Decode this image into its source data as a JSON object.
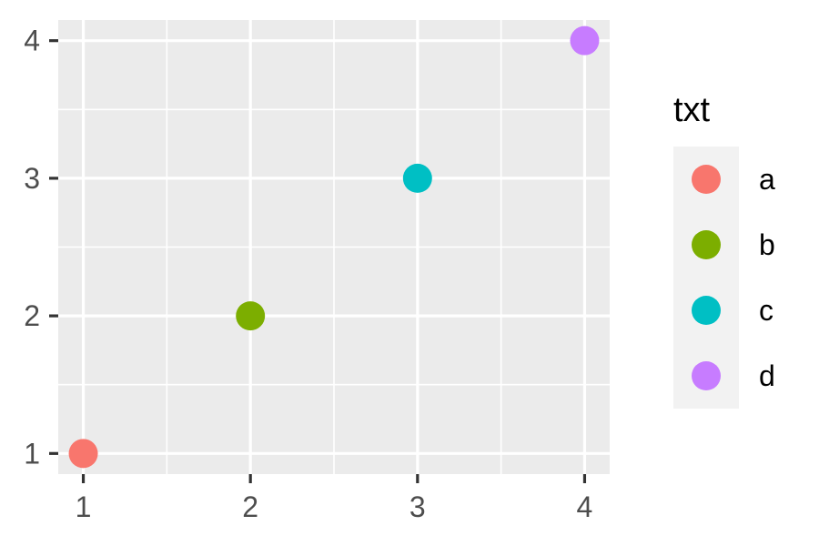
{
  "chart_data": {
    "type": "scatter",
    "x": [
      1,
      2,
      3,
      4
    ],
    "y": [
      1,
      2,
      3,
      4
    ],
    "groups": [
      "a",
      "b",
      "c",
      "d"
    ],
    "xlim": [
      0.85,
      4.15
    ],
    "ylim": [
      0.85,
      4.15
    ],
    "x_ticks": [
      1,
      2,
      3,
      4
    ],
    "y_ticks": [
      1,
      2,
      3,
      4
    ],
    "x_tick_labels": [
      "1",
      "2",
      "3",
      "4"
    ],
    "y_tick_labels": [
      "1",
      "2",
      "3",
      "4"
    ],
    "x_minor_breaks": [
      1.5,
      2.5,
      3.5
    ],
    "y_minor_breaks": [
      1.5,
      2.5,
      3.5
    ],
    "grid": true,
    "panel_background": "#ebebeb",
    "grid_color": "#ffffff",
    "legend": {
      "title": "txt",
      "placement": "right",
      "entries": [
        "a",
        "b",
        "c",
        "d"
      ],
      "key_background": "#f2f2f2"
    },
    "colors": [
      "#f8766d",
      "#7cae00",
      "#00bfc4",
      "#c77cff"
    ]
  }
}
